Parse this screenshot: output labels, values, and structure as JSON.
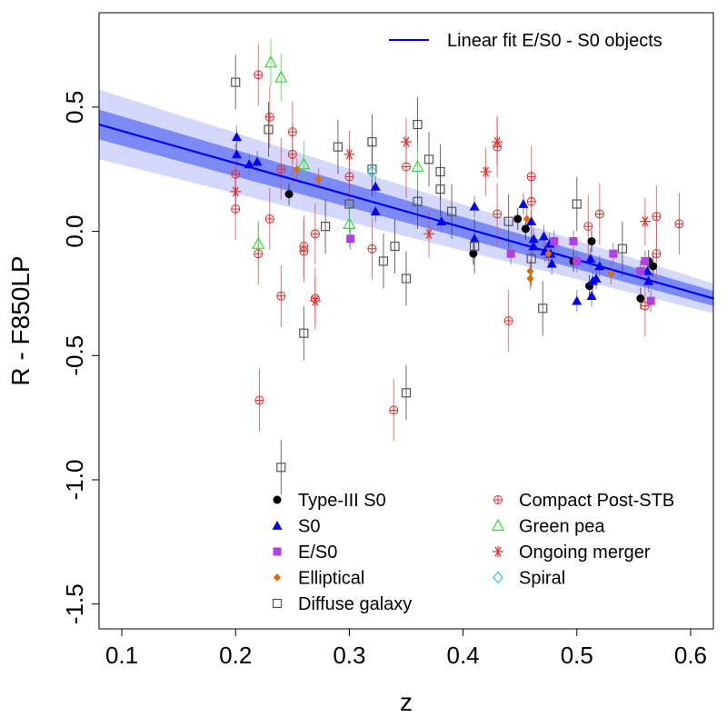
{
  "chart_data": {
    "type": "scatter",
    "xlabel": "z",
    "ylabel": "R - F850LP",
    "xlim": [
      0.08,
      0.62
    ],
    "ylim": [
      -1.6,
      0.88
    ],
    "x_ticks": [
      0.1,
      0.2,
      0.3,
      0.4,
      0.5,
      0.6
    ],
    "x_tick_labels": [
      "0.1",
      "0.2",
      "0.3",
      "0.4",
      "0.5",
      "0.6"
    ],
    "y_ticks": [
      0.5,
      0.0,
      -0.5,
      -1.0,
      -1.5
    ],
    "y_tick_labels": [
      "0.5",
      "0.0",
      "-0.5",
      "-1.0",
      "-1.5"
    ],
    "grid": false,
    "fit": {
      "label": "Linear fit E/S0 - S0 objects",
      "color": "#0000ff",
      "line": [
        [
          0.08,
          0.43
        ],
        [
          0.62,
          -0.27
        ]
      ],
      "band_inner": {
        "upper": [
          [
            0.08,
            0.49
          ],
          [
            0.62,
            -0.24
          ]
        ],
        "lower": [
          [
            0.08,
            0.37
          ],
          [
            0.62,
            -0.3
          ]
        ],
        "color": "#7b8af5"
      },
      "band_outer": {
        "upper": [
          [
            0.08,
            0.57
          ],
          [
            0.62,
            -0.21
          ]
        ],
        "lower": [
          [
            0.08,
            0.29
          ],
          [
            0.62,
            -0.33
          ]
        ],
        "color": "#d4d8fb"
      }
    },
    "legend_top": {
      "placement": "top-right",
      "entry": "Linear fit E/S0 - S0 objects"
    },
    "legend_bottom": {
      "placement": "bottom",
      "entries": [
        {
          "name": "Type-III S0",
          "marker": "filled-circle",
          "color": "#000000"
        },
        {
          "name": "S0",
          "marker": "filled-triangle",
          "color": "#0000ff"
        },
        {
          "name": "E/S0",
          "marker": "filled-square",
          "color": "#b23ee6"
        },
        {
          "name": "Elliptical",
          "marker": "filled-diamond",
          "color": "#e06c00"
        },
        {
          "name": "Diffuse galaxy",
          "marker": "open-square",
          "color": "#555555"
        },
        {
          "name": "Compact Post-STB",
          "marker": "circle-plus",
          "color": "#e03030"
        },
        {
          "name": "Green pea",
          "marker": "open-triangle",
          "color": "#33dd33"
        },
        {
          "name": "Ongoing merger",
          "marker": "asterisk",
          "color": "#e03030"
        },
        {
          "name": "Spiral",
          "marker": "open-diamond",
          "color": "#22cccc"
        }
      ]
    },
    "series": [
      {
        "name": "Type-III S0",
        "marker": "filled-circle",
        "color": "#000000",
        "points": [
          [
            0.247,
            0.15
          ],
          [
            0.409,
            -0.09
          ],
          [
            0.448,
            0.05
          ],
          [
            0.455,
            0.01
          ],
          [
            0.497,
            -0.12
          ],
          [
            0.511,
            -0.22
          ],
          [
            0.513,
            -0.04
          ],
          [
            0.556,
            -0.27
          ],
          [
            0.563,
            -0.12
          ],
          [
            0.567,
            -0.14
          ]
        ]
      },
      {
        "name": "S0",
        "marker": "filled-triangle",
        "color": "#0000ff",
        "points": [
          [
            0.201,
            0.38
          ],
          [
            0.201,
            0.31
          ],
          [
            0.212,
            0.27
          ],
          [
            0.219,
            0.28
          ],
          [
            0.323,
            0.18
          ],
          [
            0.323,
            0.08
          ],
          [
            0.381,
            0.04
          ],
          [
            0.41,
            0.1
          ],
          [
            0.41,
            -0.03
          ],
          [
            0.453,
            0.11
          ],
          [
            0.46,
            0.04
          ],
          [
            0.462,
            -0.03
          ],
          [
            0.462,
            -0.06
          ],
          [
            0.471,
            -0.02
          ],
          [
            0.472,
            -0.08
          ],
          [
            0.476,
            -0.05
          ],
          [
            0.477,
            -0.09
          ],
          [
            0.478,
            -0.13
          ],
          [
            0.5,
            -0.28
          ],
          [
            0.512,
            -0.11
          ],
          [
            0.513,
            -0.26
          ],
          [
            0.514,
            -0.2
          ],
          [
            0.517,
            -0.19
          ],
          [
            0.52,
            -0.14
          ],
          [
            0.562,
            -0.16
          ],
          [
            0.563,
            -0.2
          ]
        ]
      },
      {
        "name": "E/S0",
        "marker": "filled-square",
        "color": "#b23ee6",
        "points": [
          [
            0.301,
            -0.03
          ],
          [
            0.442,
            -0.09
          ],
          [
            0.48,
            -0.04
          ],
          [
            0.497,
            -0.04
          ],
          [
            0.5,
            -0.12
          ],
          [
            0.532,
            -0.09
          ],
          [
            0.556,
            -0.16
          ],
          [
            0.56,
            -0.12
          ],
          [
            0.565,
            -0.28
          ]
        ]
      },
      {
        "name": "Elliptical",
        "marker": "filled-diamond",
        "color": "#e06c00",
        "points": [
          [
            0.254,
            0.25
          ],
          [
            0.273,
            0.21
          ],
          [
            0.456,
            0.05
          ],
          [
            0.459,
            -0.16
          ],
          [
            0.459,
            -0.19
          ],
          [
            0.475,
            -0.09
          ],
          [
            0.53,
            -0.17
          ]
        ]
      },
      {
        "name": "Diffuse galaxy",
        "marker": "open-square",
        "color": "#555555",
        "points": [
          [
            0.2,
            0.6
          ],
          [
            0.229,
            0.41
          ],
          [
            0.24,
            -0.95
          ],
          [
            0.26,
            -0.41
          ],
          [
            0.279,
            0.02
          ],
          [
            0.29,
            0.34
          ],
          [
            0.3,
            0.11
          ],
          [
            0.32,
            0.36
          ],
          [
            0.32,
            0.25
          ],
          [
            0.33,
            -0.12
          ],
          [
            0.34,
            -0.06
          ],
          [
            0.35,
            -0.19
          ],
          [
            0.35,
            -0.65
          ],
          [
            0.36,
            0.43
          ],
          [
            0.36,
            0.12
          ],
          [
            0.37,
            0.29
          ],
          [
            0.38,
            0.24
          ],
          [
            0.38,
            0.17
          ],
          [
            0.39,
            0.08
          ],
          [
            0.41,
            -0.06
          ],
          [
            0.44,
            0.04
          ],
          [
            0.46,
            -0.11
          ],
          [
            0.47,
            -0.31
          ],
          [
            0.5,
            0.11
          ],
          [
            0.54,
            -0.07
          ]
        ]
      },
      {
        "name": "Compact Post-STB",
        "marker": "circle-plus",
        "color": "#e03030",
        "points": [
          [
            0.2,
            0.23
          ],
          [
            0.2,
            0.09
          ],
          [
            0.22,
            0.63
          ],
          [
            0.22,
            -0.09
          ],
          [
            0.221,
            -0.68
          ],
          [
            0.23,
            0.46
          ],
          [
            0.23,
            0.05
          ],
          [
            0.24,
            0.25
          ],
          [
            0.24,
            -0.26
          ],
          [
            0.25,
            0.4
          ],
          [
            0.25,
            0.31
          ],
          [
            0.26,
            -0.06
          ],
          [
            0.26,
            -0.08
          ],
          [
            0.27,
            -0.27
          ],
          [
            0.27,
            -0.01
          ],
          [
            0.3,
            0.22
          ],
          [
            0.32,
            -0.07
          ],
          [
            0.339,
            -0.72
          ],
          [
            0.35,
            0.26
          ],
          [
            0.43,
            0.34
          ],
          [
            0.43,
            0.07
          ],
          [
            0.44,
            -0.36
          ],
          [
            0.46,
            0.22
          ],
          [
            0.46,
            0.12
          ],
          [
            0.51,
            0.02
          ],
          [
            0.52,
            0.07
          ],
          [
            0.56,
            -0.3
          ],
          [
            0.57,
            -0.09
          ],
          [
            0.57,
            0.06
          ],
          [
            0.59,
            0.03
          ]
        ]
      },
      {
        "name": "Green pea",
        "marker": "open-triangle",
        "color": "#33dd33",
        "points": [
          [
            0.231,
            0.68
          ],
          [
            0.24,
            0.62
          ],
          [
            0.22,
            -0.05
          ],
          [
            0.26,
            0.27
          ],
          [
            0.3,
            0.03
          ],
          [
            0.36,
            0.26
          ]
        ]
      },
      {
        "name": "Ongoing merger",
        "marker": "asterisk",
        "color": "#e03030",
        "points": [
          [
            0.2,
            0.16
          ],
          [
            0.27,
            -0.28
          ],
          [
            0.3,
            0.31
          ],
          [
            0.35,
            0.36
          ],
          [
            0.37,
            -0.01
          ],
          [
            0.42,
            0.24
          ],
          [
            0.43,
            0.36
          ],
          [
            0.56,
            0.04
          ]
        ]
      },
      {
        "name": "Spiral",
        "marker": "open-diamond",
        "color": "#22cccc",
        "points": [
          [
            0.32,
            0.24
          ]
        ]
      }
    ]
  }
}
